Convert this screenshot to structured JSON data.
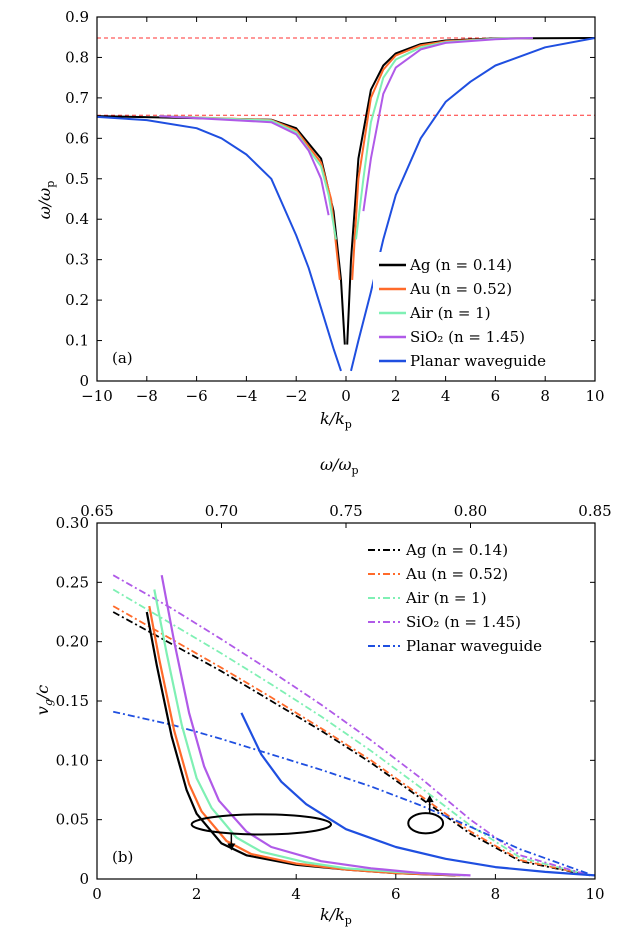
{
  "chart_data": [
    {
      "panel_label": "(a)",
      "type": "line",
      "xlabel": "k/k_p",
      "ylabel": "ω/ω_p",
      "xlim": [
        -10,
        10
      ],
      "ylim": [
        0,
        0.9
      ],
      "xticks": [
        "−10",
        "−8",
        "−6",
        "−4",
        "−2",
        "0",
        "2",
        "4",
        "6",
        "8",
        "10"
      ],
      "yticks": [
        "0",
        "0.1",
        "0.2",
        "0.3",
        "0.4",
        "0.5",
        "0.6",
        "0.7",
        "0.8",
        "0.9"
      ],
      "legend_position": "bottom-right",
      "reference_lines": [
        {
          "y": 0.848,
          "style": "dashed",
          "color": "#ff3030"
        },
        {
          "y": 0.657,
          "style": "dashed",
          "color": "#ff3030"
        }
      ],
      "series": [
        {
          "name": "Ag (n = 0.14)",
          "color": "#000000",
          "left": [
            [
              -10,
              0.655
            ],
            [
              -3,
              0.646
            ],
            [
              -2,
              0.625
            ],
            [
              -1,
              0.55
            ],
            [
              -0.5,
              0.42
            ],
            [
              -0.2,
              0.25
            ],
            [
              -0.05,
              0.09
            ]
          ],
          "right": [
            [
              0.05,
              0.09
            ],
            [
              0.2,
              0.3
            ],
            [
              0.5,
              0.55
            ],
            [
              1,
              0.72
            ],
            [
              1.5,
              0.78
            ],
            [
              2,
              0.81
            ],
            [
              3,
              0.833
            ],
            [
              4,
              0.842
            ],
            [
              6,
              0.847
            ],
            [
              10,
              0.848
            ]
          ]
        },
        {
          "name": "Au (n = 0.52)",
          "color": "#ff6a2a",
          "left": [
            [
              -7.5,
              0.655
            ],
            [
              -3,
              0.645
            ],
            [
              -2,
              0.62
            ],
            [
              -1,
              0.54
            ],
            [
              -0.6,
              0.45
            ],
            [
              -0.25,
              0.25
            ]
          ],
          "right": [
            [
              0.25,
              0.25
            ],
            [
              0.5,
              0.5
            ],
            [
              1,
              0.7
            ],
            [
              1.5,
              0.77
            ],
            [
              2,
              0.805
            ],
            [
              3,
              0.83
            ],
            [
              4,
              0.84
            ],
            [
              6,
              0.846
            ],
            [
              7.5,
              0.848
            ]
          ]
        },
        {
          "name": "Air (n = 1)",
          "color": "#7ff0b4",
          "left": [
            [
              -7.5,
              0.655
            ],
            [
              -3,
              0.644
            ],
            [
              -2,
              0.615
            ],
            [
              -1,
              0.53
            ],
            [
              -0.7,
              0.46
            ],
            [
              -0.4,
              0.35
            ]
          ],
          "right": [
            [
              0.4,
              0.35
            ],
            [
              0.7,
              0.5
            ],
            [
              1,
              0.64
            ],
            [
              1.5,
              0.75
            ],
            [
              2,
              0.795
            ],
            [
              3,
              0.825
            ],
            [
              4,
              0.838
            ],
            [
              6,
              0.846
            ],
            [
              7.5,
              0.848
            ]
          ]
        },
        {
          "name": "SiO₂ (n = 1.45)",
          "color": "#b05ae8",
          "left": [
            [
              -7.5,
              0.655
            ],
            [
              -3,
              0.64
            ],
            [
              -2,
              0.61
            ],
            [
              -1.5,
              0.57
            ],
            [
              -1,
              0.5
            ],
            [
              -0.7,
              0.41
            ]
          ],
          "right": [
            [
              0.7,
              0.42
            ],
            [
              1,
              0.55
            ],
            [
              1.5,
              0.71
            ],
            [
              2,
              0.775
            ],
            [
              3,
              0.82
            ],
            [
              4,
              0.836
            ],
            [
              6,
              0.845
            ],
            [
              7.5,
              0.848
            ]
          ]
        },
        {
          "name": "Planar waveguide",
          "color": "#1f4fe0",
          "left": [
            [
              -10,
              0.653
            ],
            [
              -8,
              0.645
            ],
            [
              -6,
              0.625
            ],
            [
              -5,
              0.6
            ],
            [
              -4,
              0.56
            ],
            [
              -3,
              0.5
            ],
            [
              -2,
              0.36
            ],
            [
              -1.5,
              0.28
            ],
            [
              -1,
              0.18
            ],
            [
              -0.5,
              0.08
            ],
            [
              -0.2,
              0.025
            ]
          ],
          "right": [
            [
              0.2,
              0.025
            ],
            [
              0.5,
              0.1
            ],
            [
              1,
              0.22
            ],
            [
              1.5,
              0.35
            ],
            [
              2,
              0.46
            ],
            [
              3,
              0.6
            ],
            [
              4,
              0.69
            ],
            [
              5,
              0.74
            ],
            [
              6,
              0.78
            ],
            [
              8,
              0.825
            ],
            [
              10,
              0.848
            ]
          ]
        }
      ]
    },
    {
      "panel_label": "(b)",
      "type": "line",
      "xlabel": "k/k_p",
      "x2label": "ω/ω_p",
      "ylabel": "v_g/c",
      "xlim": [
        0,
        10
      ],
      "x2lim": [
        0.65,
        0.85
      ],
      "ylim": [
        0,
        0.3
      ],
      "xticks": [
        "0",
        "2",
        "4",
        "6",
        "8",
        "10"
      ],
      "x2ticks": [
        "0.65",
        "0.70",
        "0.75",
        "0.80",
        "0.85"
      ],
      "yticks": [
        "0",
        "0.05",
        "0.10",
        "0.15",
        "0.20",
        "0.25",
        "0.30"
      ],
      "legend_position": "top-right",
      "series_vs_omega": [
        {
          "name": "Ag (n = 0.14)",
          "color": "#000000",
          "points": [
            [
              0.6565,
              0.225
            ],
            [
              0.68,
              0.198
            ],
            [
              0.7,
              0.175
            ],
            [
              0.72,
              0.15
            ],
            [
              0.74,
              0.125
            ],
            [
              0.76,
              0.098
            ],
            [
              0.78,
              0.068
            ],
            [
              0.8,
              0.038
            ],
            [
              0.82,
              0.015
            ],
            [
              0.848,
              0.003
            ]
          ]
        },
        {
          "name": "Au (n = 0.52)",
          "color": "#ff6a2a",
          "points": [
            [
              0.6565,
              0.23
            ],
            [
              0.68,
              0.202
            ],
            [
              0.7,
              0.178
            ],
            [
              0.72,
              0.153
            ],
            [
              0.74,
              0.127
            ],
            [
              0.76,
              0.1
            ],
            [
              0.78,
              0.07
            ],
            [
              0.8,
              0.04
            ],
            [
              0.82,
              0.016
            ],
            [
              0.848,
              0.003
            ]
          ]
        },
        {
          "name": "Air (n = 1)",
          "color": "#7ff0b4",
          "points": [
            [
              0.6565,
              0.244
            ],
            [
              0.68,
              0.215
            ],
            [
              0.7,
              0.19
            ],
            [
              0.72,
              0.164
            ],
            [
              0.74,
              0.137
            ],
            [
              0.76,
              0.108
            ],
            [
              0.78,
              0.077
            ],
            [
              0.8,
              0.045
            ],
            [
              0.82,
              0.018
            ],
            [
              0.848,
              0.003
            ]
          ]
        },
        {
          "name": "SiO₂ (n = 1.45)",
          "color": "#b05ae8",
          "points": [
            [
              0.6565,
              0.256
            ],
            [
              0.68,
              0.228
            ],
            [
              0.7,
              0.202
            ],
            [
              0.72,
              0.175
            ],
            [
              0.74,
              0.147
            ],
            [
              0.76,
              0.117
            ],
            [
              0.78,
              0.085
            ],
            [
              0.8,
              0.05
            ],
            [
              0.82,
              0.02
            ],
            [
              0.848,
              0.003
            ]
          ]
        },
        {
          "name": "Planar waveguide",
          "color": "#1f4fe0",
          "points": [
            [
              0.6565,
              0.141
            ],
            [
              0.68,
              0.13
            ],
            [
              0.7,
              0.118
            ],
            [
              0.72,
              0.105
            ],
            [
              0.74,
              0.092
            ],
            [
              0.76,
              0.078
            ],
            [
              0.78,
              0.062
            ],
            [
              0.8,
              0.044
            ],
            [
              0.82,
              0.025
            ],
            [
              0.848,
              0.004
            ]
          ]
        }
      ],
      "series_vs_k": [
        {
          "name": "Ag (n = 0.14)",
          "color": "#000000",
          "points": [
            [
              1.0,
              0.225
            ],
            [
              1.2,
              0.18
            ],
            [
              1.5,
              0.12
            ],
            [
              1.8,
              0.075
            ],
            [
              2.0,
              0.055
            ],
            [
              2.5,
              0.03
            ],
            [
              3,
              0.02
            ],
            [
              4,
              0.012
            ],
            [
              5,
              0.008
            ],
            [
              6,
              0.005
            ],
            [
              7.2,
              0.003
            ]
          ]
        },
        {
          "name": "Au (n = 0.52)",
          "color": "#ff6a2a",
          "points": [
            [
              1.05,
              0.23
            ],
            [
              1.25,
              0.185
            ],
            [
              1.55,
              0.125
            ],
            [
              1.85,
              0.08
            ],
            [
              2.1,
              0.057
            ],
            [
              2.6,
              0.032
            ],
            [
              3.1,
              0.021
            ],
            [
              4,
              0.013
            ],
            [
              5,
              0.008
            ],
            [
              6,
              0.005
            ],
            [
              7.3,
              0.003
            ]
          ]
        },
        {
          "name": "Air (n = 1)",
          "color": "#7ff0b4",
          "points": [
            [
              1.15,
              0.244
            ],
            [
              1.4,
              0.19
            ],
            [
              1.7,
              0.13
            ],
            [
              2.0,
              0.085
            ],
            [
              2.3,
              0.06
            ],
            [
              2.8,
              0.035
            ],
            [
              3.3,
              0.023
            ],
            [
              4.2,
              0.014
            ],
            [
              5,
              0.009
            ],
            [
              6,
              0.006
            ],
            [
              7.4,
              0.003
            ]
          ]
        },
        {
          "name": "SiO₂ (n = 1.45)",
          "color": "#b05ae8",
          "points": [
            [
              1.3,
              0.256
            ],
            [
              1.55,
              0.2
            ],
            [
              1.85,
              0.14
            ],
            [
              2.15,
              0.095
            ],
            [
              2.45,
              0.066
            ],
            [
              3,
              0.04
            ],
            [
              3.5,
              0.027
            ],
            [
              4.5,
              0.015
            ],
            [
              5.5,
              0.009
            ],
            [
              6.5,
              0.005
            ],
            [
              7.5,
              0.003
            ]
          ]
        },
        {
          "name": "Planar waveguide",
          "color": "#1f4fe0",
          "points": [
            [
              2.9,
              0.14
            ],
            [
              3.3,
              0.105
            ],
            [
              3.7,
              0.082
            ],
            [
              4.2,
              0.063
            ],
            [
              5,
              0.042
            ],
            [
              6,
              0.027
            ],
            [
              7,
              0.017
            ],
            [
              8,
              0.01
            ],
            [
              9,
              0.006
            ],
            [
              10,
              0.003
            ]
          ]
        }
      ],
      "annotations": [
        {
          "shape": "ellipse",
          "cx_k": 3.3,
          "cy": 0.046,
          "rx_k": 1.4,
          "ry": 0.0085,
          "arrow": "down"
        },
        {
          "shape": "ellipse",
          "cx_k": 6.6,
          "cy": 0.047,
          "rx_k": 0.35,
          "ry": 0.0085,
          "arrow": "up"
        }
      ]
    }
  ]
}
